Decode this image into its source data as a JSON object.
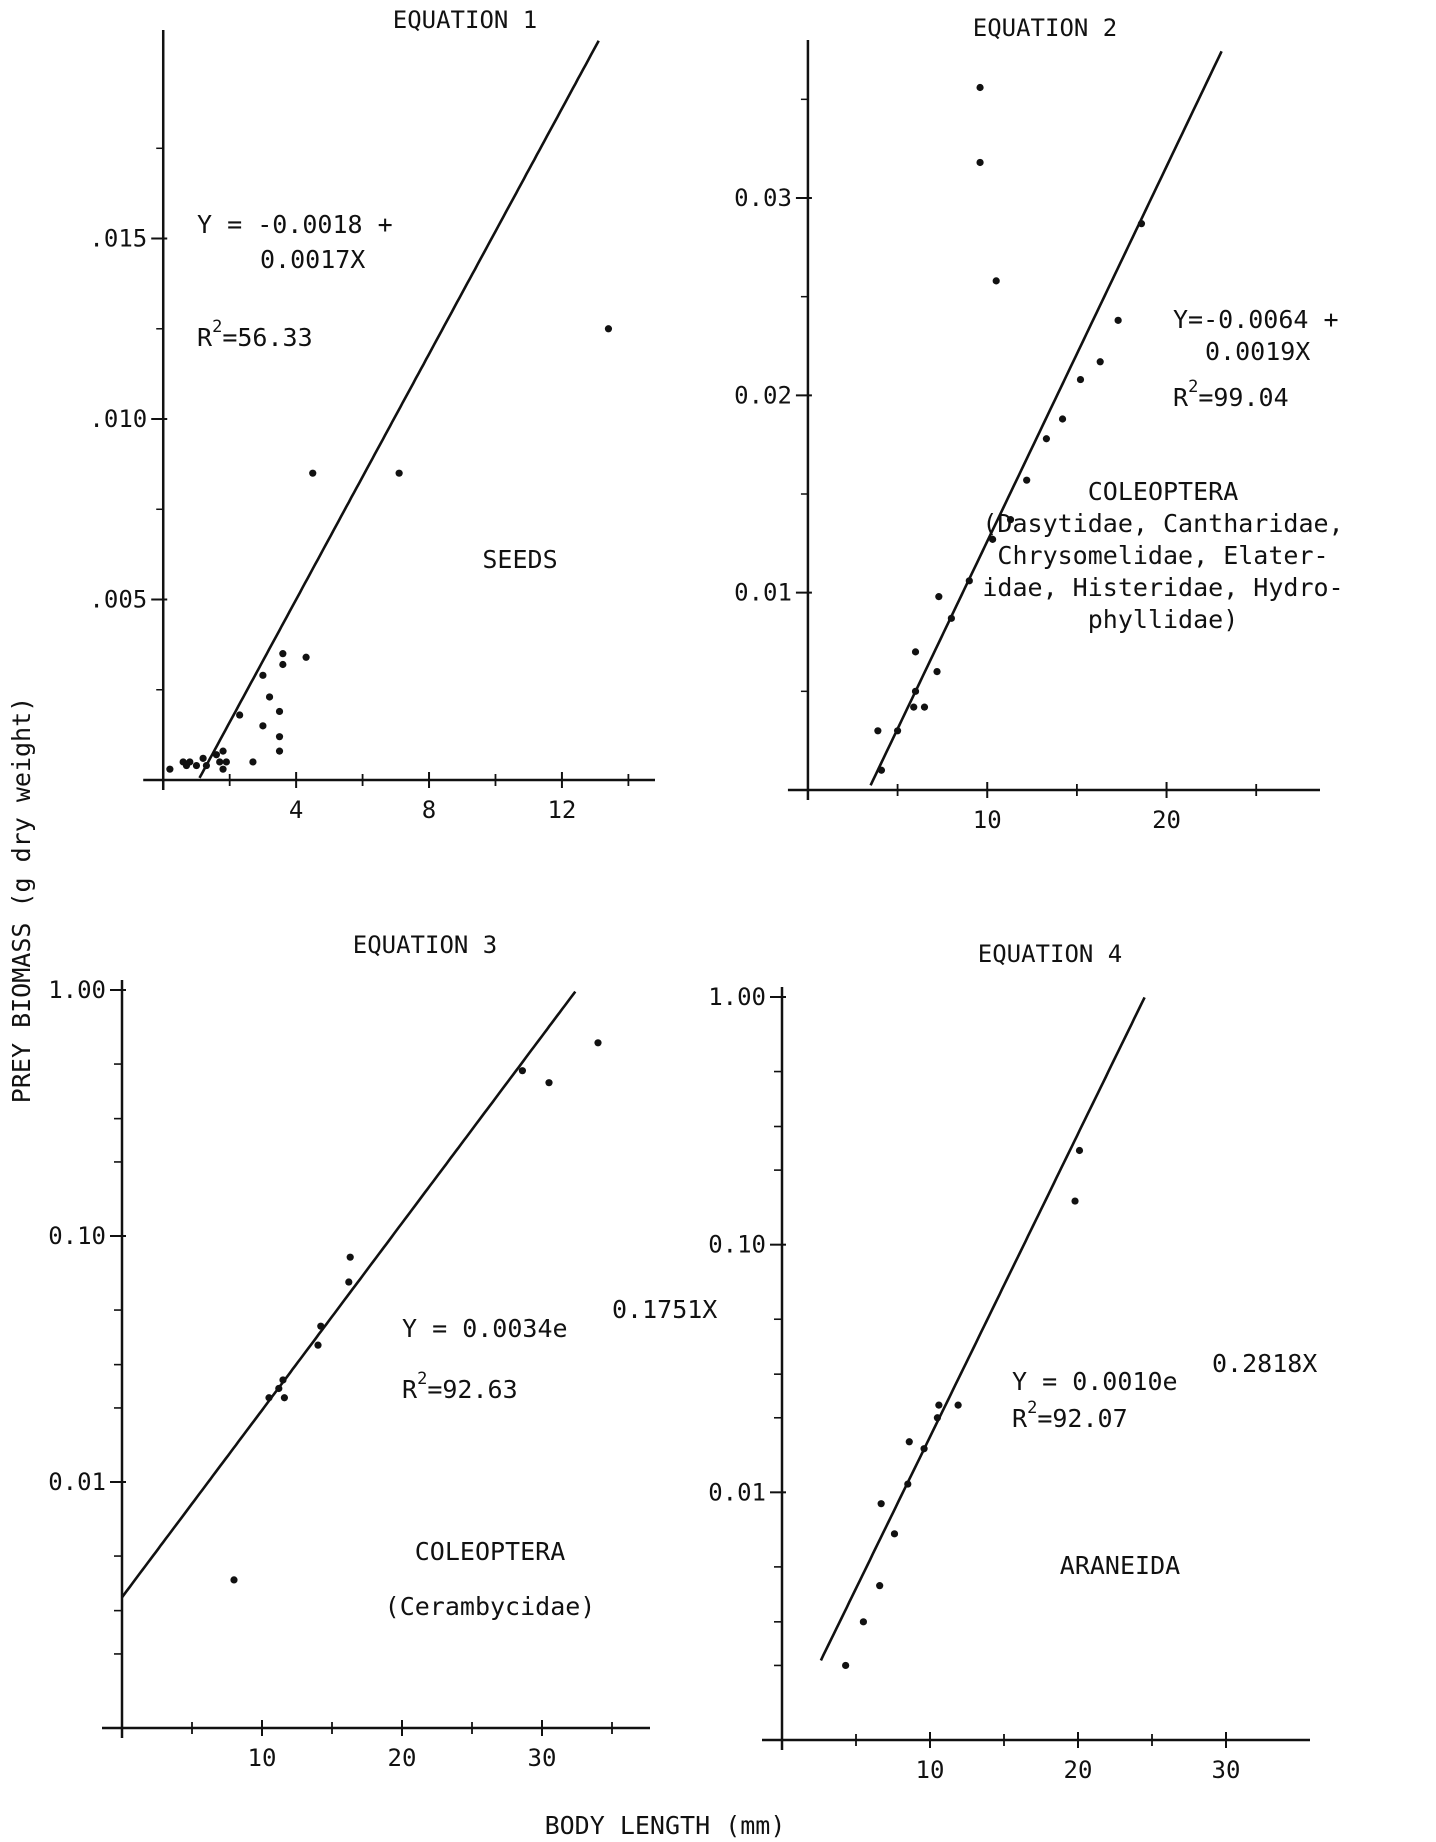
{
  "figure": {
    "ylabel": "PREY BIOMASS   (g dry weight)",
    "xlabel": "BODY LENGTH (mm)"
  },
  "chart_data": [
    {
      "type": "scatter",
      "title": "EQUATION 1",
      "xlabel": "",
      "ylabel": "",
      "xlim": [
        -1,
        14.5
      ],
      "ylim": [
        0,
        0.0205
      ],
      "yscale": "linear",
      "xticks": [
        4,
        8,
        12
      ],
      "xtick_labels": [
        "4",
        "8",
        "12"
      ],
      "yticks": [
        0.005,
        0.01,
        0.015
      ],
      "ytick_labels": [
        ".005",
        ".010",
        ".015"
      ],
      "fit": {
        "kind": "linear",
        "intercept": -0.0018,
        "slope": 0.0017
      },
      "equation": [
        "Y = -0.0018 +",
        "0.0017X"
      ],
      "r2": {
        "prefix": "R",
        "exp": "2",
        "suffix": "=56.33"
      },
      "group_label": [
        "SEEDS"
      ],
      "points": [
        [
          0.2,
          0.0003
        ],
        [
          0.6,
          0.0005
        ],
        [
          0.7,
          0.0004
        ],
        [
          0.8,
          0.0005
        ],
        [
          1.0,
          0.0004
        ],
        [
          1.2,
          0.0006
        ],
        [
          1.3,
          0.0004
        ],
        [
          1.6,
          0.0007
        ],
        [
          1.7,
          0.0005
        ],
        [
          1.8,
          0.0003
        ],
        [
          1.8,
          0.0008
        ],
        [
          1.9,
          0.0005
        ],
        [
          2.3,
          0.0018
        ],
        [
          2.7,
          0.0005
        ],
        [
          3.0,
          0.0015
        ],
        [
          3.0,
          0.0029
        ],
        [
          3.2,
          0.0023
        ],
        [
          3.5,
          0.0019
        ],
        [
          3.5,
          0.0012
        ],
        [
          3.5,
          0.0008
        ],
        [
          3.6,
          0.0035
        ],
        [
          3.6,
          0.0032
        ],
        [
          4.3,
          0.0034
        ],
        [
          4.5,
          0.0085
        ],
        [
          7.1,
          0.0085
        ],
        [
          13.4,
          0.0125
        ]
      ]
    },
    {
      "type": "scatter",
      "title": "EQUATION 2",
      "xlabel": "",
      "ylabel": "",
      "xlim": [
        -1,
        28
      ],
      "ylim": [
        0,
        0.0375
      ],
      "yscale": "linear",
      "xticks": [
        10,
        20
      ],
      "xtick_labels": [
        "10",
        "20"
      ],
      "yticks": [
        0.01,
        0.02,
        0.03
      ],
      "ytick_labels": [
        "0.01",
        "0.02",
        "0.03"
      ],
      "fit": {
        "kind": "linear",
        "intercept": -0.0064,
        "slope": 0.0019
      },
      "equation": [
        "Y=-0.0064 +",
        "0.0019X"
      ],
      "r2": {
        "prefix": "R",
        "exp": "2",
        "suffix": "=99.04"
      },
      "group_label": [
        "COLEOPTERA",
        "(Dasytidae, Cantharidae,",
        "Chrysomelidae, Elater-",
        "idae, Histeridae, Hydro-",
        "phyllidae)"
      ],
      "points": [
        [
          3.9,
          0.003
        ],
        [
          4.1,
          0.001
        ],
        [
          5.0,
          0.003
        ],
        [
          5.9,
          0.0042
        ],
        [
          6.0,
          0.007
        ],
        [
          6.0,
          0.005
        ],
        [
          6.5,
          0.0042
        ],
        [
          7.2,
          0.006
        ],
        [
          7.3,
          0.0098
        ],
        [
          8.0,
          0.0087
        ],
        [
          9.0,
          0.0106
        ],
        [
          9.6,
          0.0356
        ],
        [
          9.6,
          0.0318
        ],
        [
          10.3,
          0.0127
        ],
        [
          10.5,
          0.0258
        ],
        [
          11.3,
          0.0137
        ],
        [
          12.2,
          0.0157
        ],
        [
          13.3,
          0.0178
        ],
        [
          14.2,
          0.0188
        ],
        [
          15.2,
          0.0208
        ],
        [
          16.3,
          0.0217
        ],
        [
          17.3,
          0.0238
        ],
        [
          18.6,
          0.0287
        ]
      ]
    },
    {
      "type": "scatter",
      "title": "EQUATION 3",
      "xlabel": "",
      "ylabel": "",
      "xlim": [
        0,
        37
      ],
      "ylim": [
        0.001,
        1.0
      ],
      "yscale": "log",
      "xticks": [
        10,
        20,
        30
      ],
      "xtick_labels": [
        "10",
        "20",
        "30"
      ],
      "yticks": [
        0.01,
        0.1,
        1.0
      ],
      "ytick_labels": [
        "0.01",
        "0.10",
        "1.00"
      ],
      "fit": {
        "kind": "exponential",
        "a": 0.0034,
        "b": 0.1751
      },
      "equation": [
        "Y = 0.0034e",
        "0.1751X"
      ],
      "r2": {
        "prefix": "R",
        "exp": "2",
        "suffix": "=92.63"
      },
      "group_label": [
        "COLEOPTERA",
        "(Cerambycidae)"
      ],
      "points": [
        [
          8.0,
          0.004
        ],
        [
          10.5,
          0.022
        ],
        [
          11.2,
          0.024
        ],
        [
          11.5,
          0.026
        ],
        [
          11.6,
          0.022
        ],
        [
          14.0,
          0.036
        ],
        [
          14.2,
          0.043
        ],
        [
          16.2,
          0.065
        ],
        [
          16.3,
          0.082
        ],
        [
          28.6,
          0.47
        ],
        [
          30.5,
          0.42
        ],
        [
          34.0,
          0.61
        ]
      ]
    },
    {
      "type": "scatter",
      "title": "EQUATION 4",
      "xlabel": "",
      "ylabel": "",
      "xlim": [
        0,
        35
      ],
      "ylim": [
        0.001,
        1.0
      ],
      "yscale": "log",
      "xticks": [
        10,
        20,
        30
      ],
      "xtick_labels": [
        "10",
        "20",
        "30"
      ],
      "yticks": [
        0.01,
        0.1,
        1.0
      ],
      "ytick_labels": [
        "0.01",
        "0.10",
        "1.00"
      ],
      "fit": {
        "kind": "exponential",
        "a": 0.001,
        "b": 0.2818
      },
      "equation": [
        "Y = 0.0010e",
        "0.2818X"
      ],
      "r2": {
        "prefix": "R",
        "exp": "2",
        "suffix": "=92.07"
      },
      "group_label": [
        "ARANEIDA"
      ],
      "points": [
        [
          4.3,
          0.002
        ],
        [
          5.5,
          0.003
        ],
        [
          6.6,
          0.0042
        ],
        [
          6.7,
          0.009
        ],
        [
          7.6,
          0.0068
        ],
        [
          8.5,
          0.0108
        ],
        [
          8.6,
          0.016
        ],
        [
          9.6,
          0.015
        ],
        [
          10.5,
          0.02
        ],
        [
          10.6,
          0.0225
        ],
        [
          11.9,
          0.0225
        ],
        [
          19.8,
          0.15
        ],
        [
          20.1,
          0.24
        ]
      ]
    }
  ]
}
